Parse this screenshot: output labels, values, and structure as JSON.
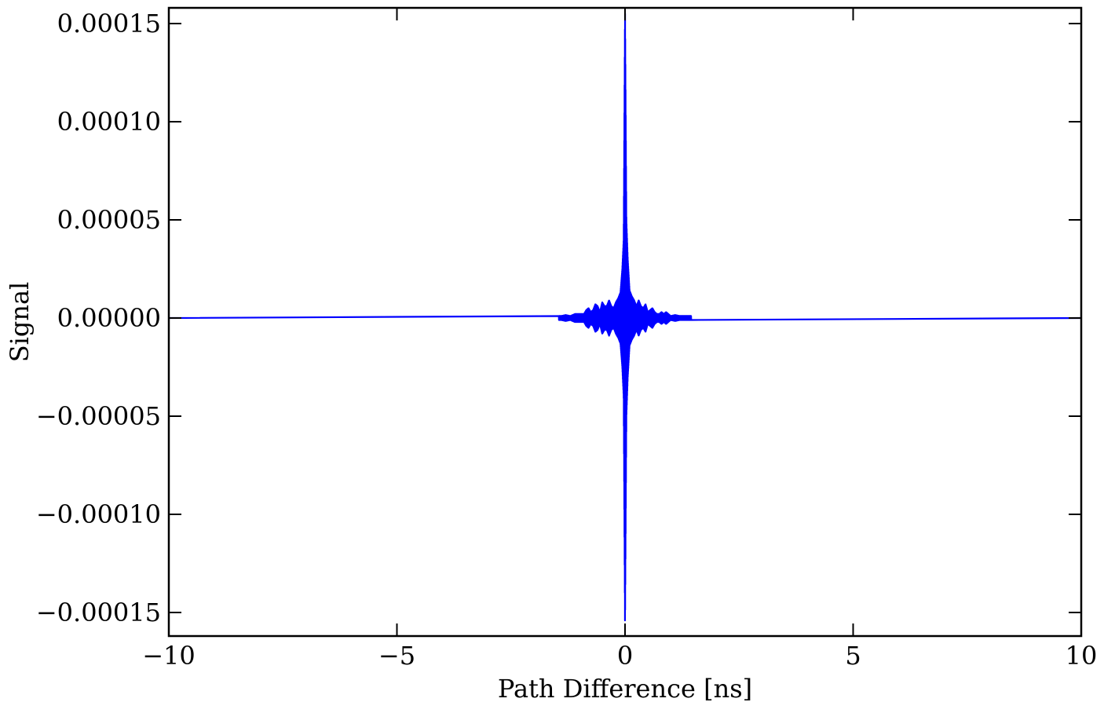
{
  "chart_data": {
    "type": "line",
    "title": "",
    "xlabel": "Path Difference [ns]",
    "ylabel": "Signal",
    "xlim": [
      -10,
      10
    ],
    "ylim": [
      -0.000162,
      0.000158
    ],
    "grid": false,
    "legend": "none",
    "line_color": "#0000ff",
    "x_ticks": [
      -10,
      -5,
      0,
      5,
      10
    ],
    "x_tick_labels": [
      "−10",
      "−5",
      "0",
      "5",
      "10"
    ],
    "y_ticks": [
      0.00015,
      0.0001,
      5e-05,
      0,
      -5e-05,
      -0.0001,
      -0.00015
    ],
    "y_tick_labels": [
      "0.00015",
      "0.00010",
      "0.00005",
      "0.00000",
      "−0.00005",
      "−0.00010",
      "−0.00015"
    ],
    "series": [
      {
        "x": [
          -10,
          -1.4,
          -1.3,
          -1.2,
          -1.1,
          -1.0,
          -0.9,
          -0.85,
          -0.8,
          -0.75,
          -0.7,
          -0.65,
          -0.6,
          -0.55,
          -0.5,
          -0.45,
          -0.4,
          -0.35,
          -0.3,
          -0.25,
          -0.2,
          -0.15,
          -0.1,
          -0.06,
          -0.03,
          0,
          0.03,
          0.06,
          0.1,
          0.15,
          0.2,
          0.25,
          0.3,
          0.35,
          0.4,
          0.45,
          0.5,
          0.55,
          0.6,
          0.65,
          0.7,
          0.75,
          0.8,
          0.85,
          0.9,
          1.0,
          1.1,
          1.2,
          1.3,
          1.4,
          10
        ],
        "envelope": [
          0,
          1e-06,
          1.5e-06,
          1e-06,
          2e-06,
          2e-06,
          2e-06,
          4e-06,
          5e-06,
          3e-06,
          4e-06,
          7e-06,
          6e-06,
          3e-06,
          8e-06,
          6e-06,
          6e-06,
          9e-06,
          6e-06,
          5e-06,
          8e-06,
          1e-05,
          1.3e-05,
          2.5e-05,
          4e-05,
          0.000158,
          5e-05,
          3e-05,
          1.4e-05,
          1.1e-05,
          9e-06,
          6e-06,
          9e-06,
          6e-06,
          5e-06,
          7e-06,
          3e-06,
          4e-06,
          5e-06,
          3e-06,
          2e-06,
          2e-06,
          3e-06,
          2e-06,
          3e-06,
          1e-06,
          1.5e-06,
          1e-06,
          1e-06,
          1e-06,
          0
        ]
      }
    ]
  }
}
